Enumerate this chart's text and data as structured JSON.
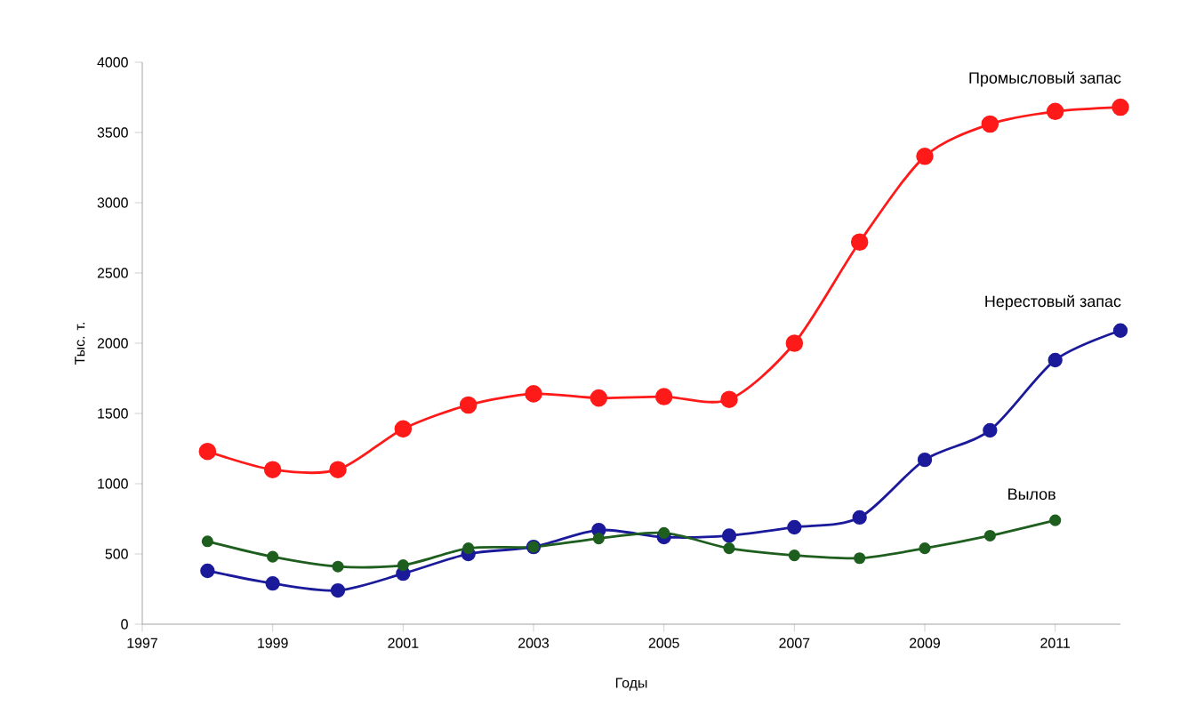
{
  "chart_data": {
    "type": "line",
    "xlabel": "Годы",
    "ylabel": "Тыс. т.",
    "x": [
      1998,
      1999,
      2000,
      2001,
      2002,
      2003,
      2004,
      2005,
      2006,
      2007,
      2008,
      2009,
      2010,
      2011,
      2012
    ],
    "series": [
      {
        "name": "Промысловый запас",
        "color": "#ff1a1a",
        "values": [
          1230,
          1100,
          1100,
          1390,
          1560,
          1640,
          1610,
          1620,
          1600,
          2000,
          2720,
          3330,
          3560,
          3650,
          3680
        ]
      },
      {
        "name": "Нерестовый запас",
        "color": "#1a1a9a",
        "values": [
          380,
          290,
          240,
          360,
          500,
          550,
          670,
          620,
          630,
          690,
          760,
          1170,
          1380,
          1880,
          2090
        ]
      },
      {
        "name": "Вылов",
        "color": "#1e5e1e",
        "values": [
          590,
          480,
          410,
          420,
          540,
          550,
          610,
          650,
          540,
          490,
          470,
          540,
          630,
          740,
          null
        ]
      }
    ],
    "xlim": [
      1997,
      2012
    ],
    "ylim": [
      0,
      4000
    ],
    "xticks": [
      1997,
      1999,
      2001,
      2003,
      2005,
      2007,
      2009,
      2011
    ],
    "yticks": [
      0,
      500,
      1000,
      1500,
      2000,
      2500,
      3000,
      3500,
      4000
    ],
    "grid": false,
    "marker": "circle",
    "line_style": "solid",
    "legend": false
  }
}
